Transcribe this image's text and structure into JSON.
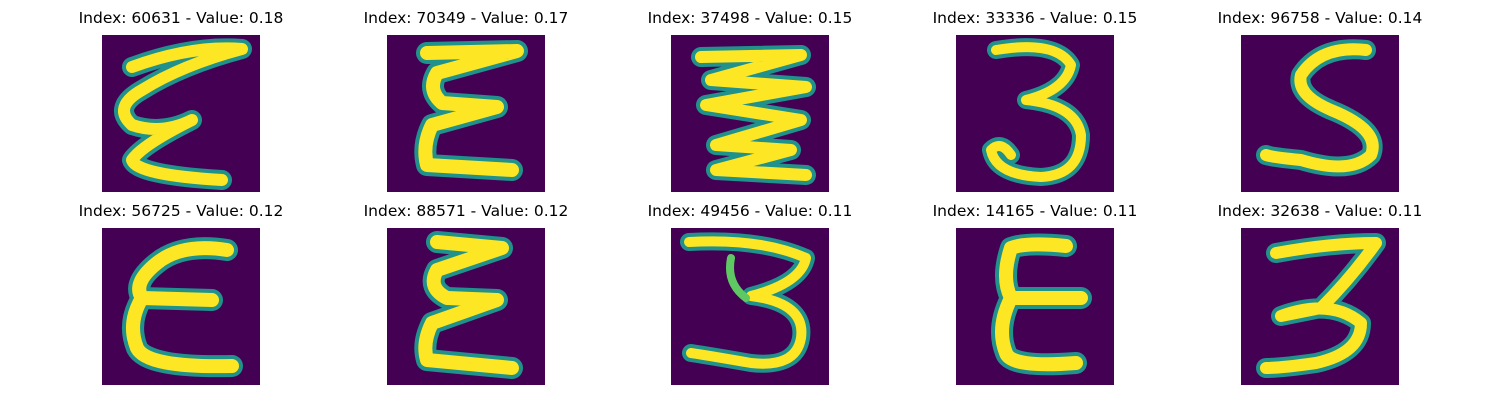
{
  "colors": {
    "background": "#440154",
    "edge": "#21918c",
    "mid": "#5ec962",
    "stroke": "#fde725"
  },
  "panels": [
    {
      "title": "Index: 60631 - Value: 0.18",
      "glyph": "epsilon-loose-icon"
    },
    {
      "title": "Index: 70349 - Value: 0.17",
      "glyph": "epsilon-zigzag-icon"
    },
    {
      "title": "Index: 37498 - Value: 0.15",
      "glyph": "zigzag-icon"
    },
    {
      "title": "Index: 33336 - Value: 0.15",
      "glyph": "digit-three-icon"
    },
    {
      "title": "Index: 96758 - Value: 0.14",
      "glyph": "digit-five-icon"
    },
    {
      "title": "Index: 56725 - Value: 0.12",
      "glyph": "epsilon-bold-icon"
    },
    {
      "title": "Index: 88571 - Value: 0.12",
      "glyph": "epsilon-zigzag-icon"
    },
    {
      "title": "Index: 49456 - Value: 0.11",
      "glyph": "digit-three-wide-icon"
    },
    {
      "title": "Index: 14165 - Value: 0.11",
      "glyph": "letter-e-icon"
    },
    {
      "title": "Index: 32638 - Value: 0.11",
      "glyph": "digit-three-flat-icon"
    }
  ]
}
